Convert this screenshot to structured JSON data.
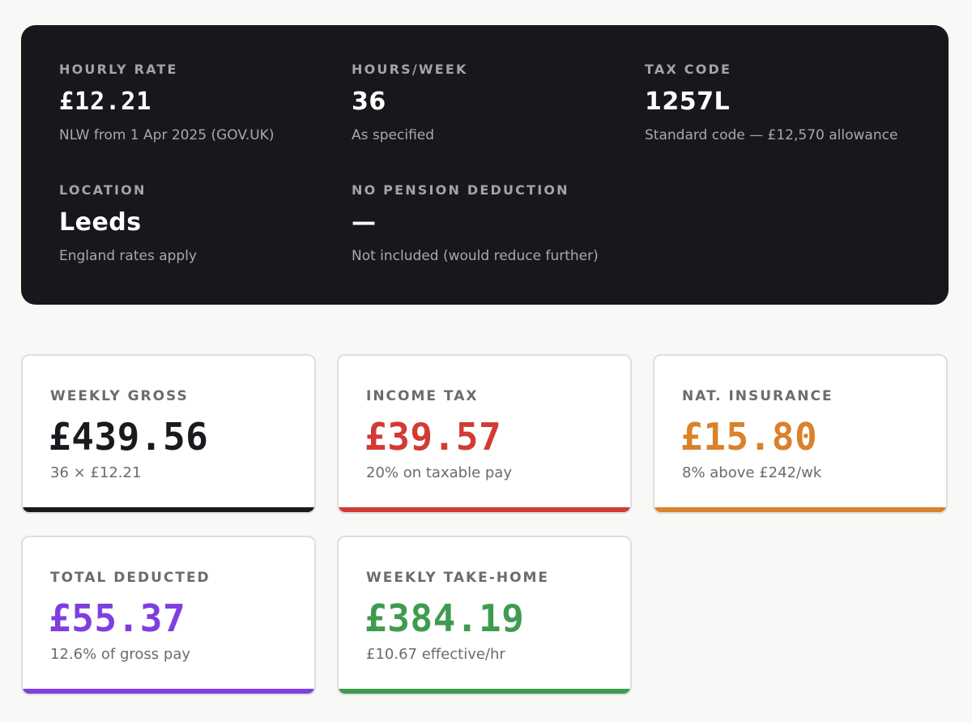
{
  "inputs": {
    "hourly_rate": {
      "label": "HOURLY RATE",
      "value": "£12.21",
      "note": "NLW from 1 Apr 2025 (GOV.UK)"
    },
    "hours_week": {
      "label": "HOURS/WEEK",
      "value": "36",
      "note": "As specified"
    },
    "tax_code": {
      "label": "TAX CODE",
      "value": "1257L",
      "note": "Standard code — £12,570 allowance"
    },
    "location": {
      "label": "LOCATION",
      "value": "Leeds",
      "note": "England rates apply"
    },
    "pension": {
      "label": "NO PENSION DEDUCTION",
      "value": "—",
      "note": "Not included (would reduce further)"
    }
  },
  "results": {
    "weekly_gross": {
      "label": "WEEKLY GROSS",
      "value": "£439.56",
      "note": "36 × £12.21",
      "color": "#1a1a1e"
    },
    "income_tax": {
      "label": "INCOME TAX",
      "value": "£39.57",
      "note": "20% on taxable pay",
      "color": "#d13b34"
    },
    "nat_insurance": {
      "label": "NAT. INSURANCE",
      "value": "£15.80",
      "note": "8% above £242/wk",
      "color": "#d9822b"
    },
    "total_deducted": {
      "label": "TOTAL DEDUCTED",
      "value": "£55.37",
      "note": "12.6% of gross pay",
      "color": "#7d3fe0"
    },
    "take_home": {
      "label": "WEEKLY TAKE-HOME",
      "value": "£384.19",
      "note": "£10.67 effective/hr",
      "color": "#3f9b4f"
    }
  }
}
